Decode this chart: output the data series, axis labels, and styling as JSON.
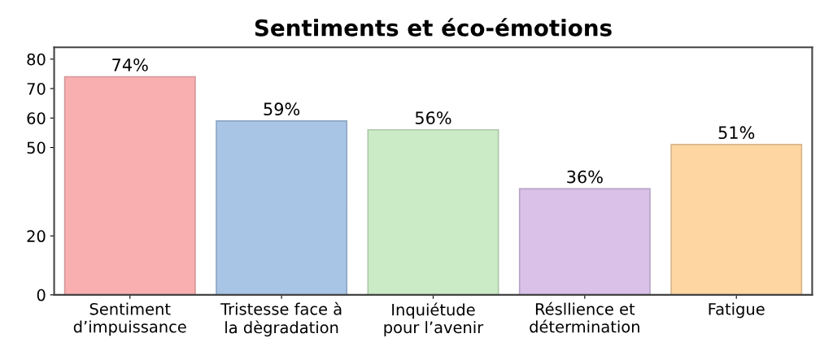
{
  "chart_data": {
    "type": "bar",
    "title": "Sentiments et éco-émotions",
    "categories": [
      "Sentiment\nd’impuissance",
      "Tristesse face à\nla dègradation",
      "Inquiétude\npour l’avenir",
      "Résllience et\ndétermination",
      "Fatigue"
    ],
    "values": [
      74,
      59,
      56,
      36,
      51
    ],
    "value_labels": [
      "74%",
      "59%",
      "56%",
      "36%",
      "51%"
    ],
    "colors": [
      "#f9afb0",
      "#a9c5e5",
      "#cbeac6",
      "#d9c1e8",
      "#fdd6a2"
    ],
    "ylim": [
      0,
      84
    ],
    "yticks": [
      0,
      20,
      50,
      60,
      70,
      80
    ],
    "grid": false
  }
}
